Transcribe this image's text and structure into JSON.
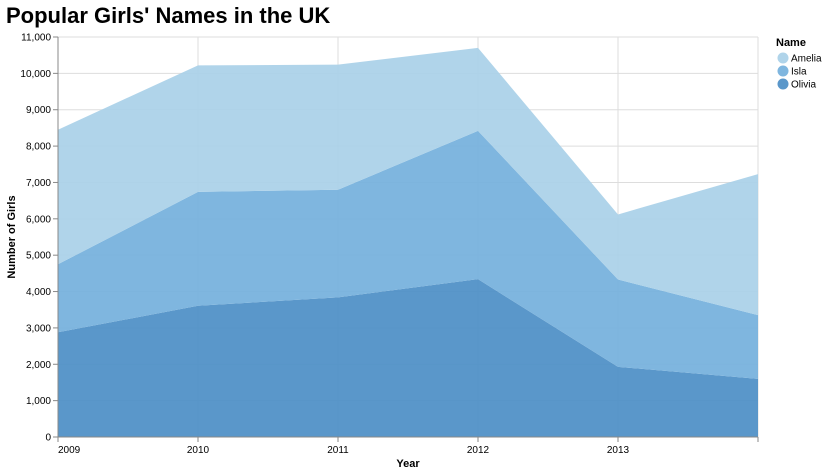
{
  "chart_data": {
    "type": "area",
    "stacked": true,
    "title": "Popular Girls' Names in the UK",
    "xlabel": "Year",
    "ylabel": "Number of Girls",
    "x": [
      2009,
      2010,
      2011,
      2012,
      2013,
      2014
    ],
    "x_tick_labels": [
      "2009",
      "2010",
      "2011",
      "2012",
      "2013"
    ],
    "ylim": [
      0,
      11000
    ],
    "y_ticks": [
      0,
      1000,
      2000,
      3000,
      4000,
      5000,
      6000,
      7000,
      8000,
      9000,
      10000,
      11000
    ],
    "y_tick_labels": [
      "0",
      "1,000",
      "2,000",
      "3,000",
      "4,000",
      "5,000",
      "6,000",
      "7,000",
      "8,000",
      "9,000",
      "10,000",
      "11,000"
    ],
    "grid": true,
    "legend": {
      "title": "Name",
      "placement": "right",
      "entries": [
        "Amelia",
        "Isla",
        "Olivia"
      ]
    },
    "series": [
      {
        "name": "Olivia",
        "color": "#4c8ec6",
        "values": [
          2880,
          3610,
          3840,
          4340,
          1930,
          1600
        ]
      },
      {
        "name": "Isla",
        "color": "#74b0dc",
        "values": [
          1870,
          3130,
          2960,
          4080,
          2400,
          1750
        ]
      },
      {
        "name": "Amelia",
        "color": "#a9d0e8",
        "values": [
          3700,
          3480,
          3440,
          2280,
          1790,
          3880
        ]
      }
    ]
  }
}
